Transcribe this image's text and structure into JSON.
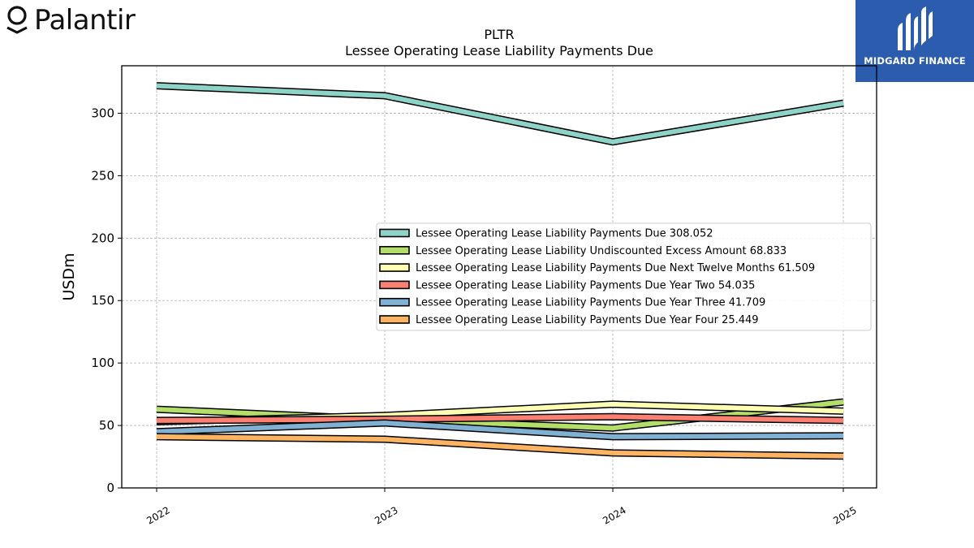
{
  "branding": {
    "logo_left_text": "Palantir",
    "logo_right_text": "MIDGARD FINANCE",
    "logo_right_color": "#2b5cad"
  },
  "chart_data": {
    "type": "line",
    "title": "PLTR",
    "subtitle": "Lessee Operating Lease Liability Payments Due",
    "xlabel": "",
    "ylabel": "USDm",
    "categories": [
      "2022",
      "2023",
      "2024",
      "2025"
    ],
    "ylim": [
      0,
      338
    ],
    "yticks": [
      0,
      50,
      100,
      150,
      200,
      250,
      300
    ],
    "grid": true,
    "legend_position": "center-right",
    "series": [
      {
        "name": "Lessee Operating Lease Liability Payments Due",
        "legend_value": "308.052",
        "values": [
          322,
          314,
          277,
          308.052
        ],
        "color": "#8dd3c7"
      },
      {
        "name": "Lessee Operating Lease Liability Undiscounted Excess Amount",
        "legend_value": "68.833",
        "values": [
          63,
          55,
          48,
          68.833
        ],
        "color": "#b3de69"
      },
      {
        "name": "Lessee Operating Lease Liability Payments Due Next Twelve Months",
        "legend_value": "61.509",
        "values": [
          53,
          58,
          67,
          61.509
        ],
        "color": "#ffffb3"
      },
      {
        "name": "Lessee Operating Lease Liability Payments Due Year Two",
        "legend_value": "54.035",
        "values": [
          54,
          55,
          57,
          54.035
        ],
        "color": "#fb8072"
      },
      {
        "name": "Lessee Operating Lease Liability Payments Due Year Three",
        "legend_value": "41.709",
        "values": [
          45,
          52,
          41,
          41.709
        ],
        "color": "#80b1d3"
      },
      {
        "name": "Lessee Operating Lease Liability Payments Due Year Four",
        "legend_value": "25.449",
        "values": [
          41,
          39,
          28,
          25.449
        ],
        "color": "#fdb462"
      }
    ]
  }
}
